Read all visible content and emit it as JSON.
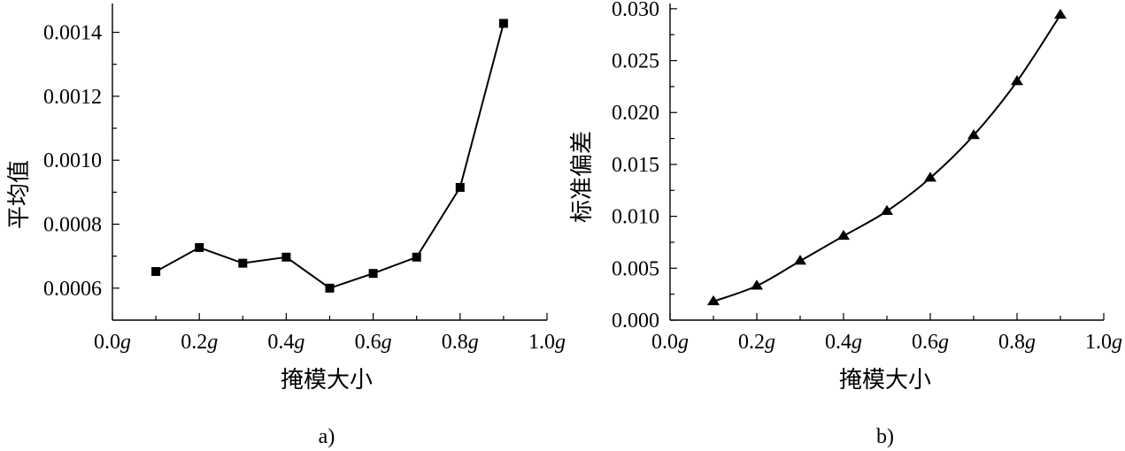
{
  "chart_data": [
    {
      "type": "line",
      "panel_label": "a)",
      "xlabel": "掩模大小",
      "ylabel": "平均值",
      "xlim": [
        0.0,
        1.0
      ],
      "ylim": [
        0.0005,
        0.00149
      ],
      "x_ticks": [
        {
          "value": 0.0,
          "num": "0.0",
          "unit": "g"
        },
        {
          "value": 0.2,
          "num": "0.2",
          "unit": "g"
        },
        {
          "value": 0.4,
          "num": "0.4",
          "unit": "g"
        },
        {
          "value": 0.6,
          "num": "0.6",
          "unit": "g"
        },
        {
          "value": 0.8,
          "num": "0.8",
          "unit": "g"
        },
        {
          "value": 1.0,
          "num": "1.0",
          "unit": "g"
        }
      ],
      "y_ticks": [
        {
          "value": 0.0006,
          "label": "0.0006"
        },
        {
          "value": 0.0008,
          "label": "0.0008"
        },
        {
          "value": 0.001,
          "label": "0.0010"
        },
        {
          "value": 0.0012,
          "label": "0.0012"
        },
        {
          "value": 0.0014,
          "label": "0.0014"
        }
      ],
      "marker": "square",
      "series": [
        {
          "x": [
            0.1,
            0.2,
            0.3,
            0.4,
            0.5,
            0.6,
            0.7,
            0.8,
            0.9
          ],
          "y": [
            0.000652,
            0.000727,
            0.000678,
            0.000697,
            0.0006,
            0.000646,
            0.000697,
            0.000915,
            0.001428
          ]
        }
      ]
    },
    {
      "type": "line",
      "panel_label": "b)",
      "xlabel": "掩模大小",
      "ylabel": "标准偏差",
      "xlim": [
        0.0,
        1.0
      ],
      "ylim": [
        0.0,
        0.0305
      ],
      "x_ticks": [
        {
          "value": 0.0,
          "num": "0.0",
          "unit": "g"
        },
        {
          "value": 0.2,
          "num": "0.2",
          "unit": "g"
        },
        {
          "value": 0.4,
          "num": "0.4",
          "unit": "g"
        },
        {
          "value": 0.6,
          "num": "0.6",
          "unit": "g"
        },
        {
          "value": 0.8,
          "num": "0.8",
          "unit": "g"
        },
        {
          "value": 1.0,
          "num": "1.0",
          "unit": "g"
        }
      ],
      "y_ticks": [
        {
          "value": 0.0,
          "label": "0.000"
        },
        {
          "value": 0.005,
          "label": "0.005"
        },
        {
          "value": 0.01,
          "label": "0.010"
        },
        {
          "value": 0.015,
          "label": "0.015"
        },
        {
          "value": 0.02,
          "label": "0.020"
        },
        {
          "value": 0.025,
          "label": "0.025"
        },
        {
          "value": 0.03,
          "label": "0.030"
        }
      ],
      "marker": "triangle",
      "series": [
        {
          "x": [
            0.1,
            0.2,
            0.3,
            0.4,
            0.5,
            0.6,
            0.7,
            0.8,
            0.9
          ],
          "y": [
            0.0018,
            0.0033,
            0.0057,
            0.0081,
            0.0105,
            0.0137,
            0.0178,
            0.023,
            0.0294
          ]
        }
      ]
    }
  ]
}
